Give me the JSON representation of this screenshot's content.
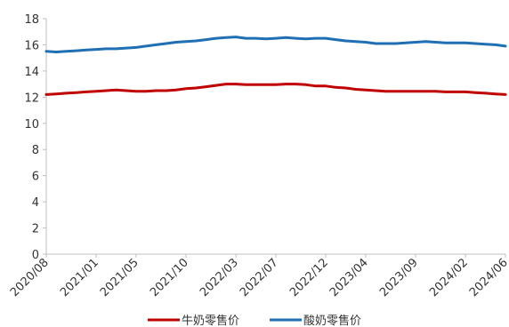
{
  "chart_data": {
    "type": "line",
    "title": "",
    "xlabel": "",
    "ylabel": "",
    "ylim": [
      0,
      18
    ],
    "yticks": [
      0,
      2,
      4,
      6,
      8,
      10,
      12,
      14,
      16,
      18
    ],
    "x_tick_labels": [
      "2020/08",
      "2021/01",
      "2021/05",
      "2021/10",
      "2022/03",
      "2022/07",
      "2022/12",
      "2023/04",
      "2023/09",
      "2024/02",
      "2024/06"
    ],
    "x": [
      "2020/08",
      "2020/09",
      "2020/10",
      "2020/11",
      "2020/12",
      "2021/01",
      "2021/02",
      "2021/03",
      "2021/04",
      "2021/05",
      "2021/06",
      "2021/07",
      "2021/08",
      "2021/09",
      "2021/10",
      "2021/11",
      "2021/12",
      "2022/01",
      "2022/02",
      "2022/03",
      "2022/04",
      "2022/05",
      "2022/06",
      "2022/07",
      "2022/08",
      "2022/09",
      "2022/10",
      "2022/11",
      "2022/12",
      "2023/01",
      "2023/02",
      "2023/03",
      "2023/04",
      "2023/05",
      "2023/06",
      "2023/07",
      "2023/08",
      "2023/09",
      "2023/10",
      "2023/11",
      "2023/12",
      "2024/01",
      "2024/02",
      "2024/03",
      "2024/04",
      "2024/05",
      "2024/06"
    ],
    "grid": false,
    "legend_position": "bottom",
    "series": [
      {
        "name": "牛奶零售价",
        "color": "#c00000",
        "values": [
          12.2,
          12.25,
          12.3,
          12.35,
          12.4,
          12.45,
          12.5,
          12.55,
          12.5,
          12.45,
          12.45,
          12.5,
          12.5,
          12.55,
          12.65,
          12.7,
          12.8,
          12.9,
          13.0,
          13.0,
          12.95,
          12.95,
          12.95,
          12.95,
          13.0,
          13.0,
          12.95,
          12.85,
          12.85,
          12.75,
          12.7,
          12.6,
          12.55,
          12.5,
          12.45,
          12.45,
          12.45,
          12.45,
          12.45,
          12.45,
          12.4,
          12.4,
          12.4,
          12.35,
          12.3,
          12.25,
          12.2
        ]
      },
      {
        "name": "酸奶零售价",
        "color": "#1f6fb4",
        "values": [
          15.5,
          15.45,
          15.5,
          15.55,
          15.6,
          15.65,
          15.7,
          15.7,
          15.75,
          15.8,
          15.9,
          16.0,
          16.1,
          16.2,
          16.25,
          16.3,
          16.4,
          16.5,
          16.55,
          16.6,
          16.5,
          16.5,
          16.45,
          16.5,
          16.55,
          16.5,
          16.45,
          16.5,
          16.5,
          16.4,
          16.3,
          16.25,
          16.2,
          16.1,
          16.1,
          16.1,
          16.15,
          16.2,
          16.25,
          16.2,
          16.15,
          16.15,
          16.15,
          16.1,
          16.05,
          16.0,
          15.9
        ]
      }
    ]
  }
}
